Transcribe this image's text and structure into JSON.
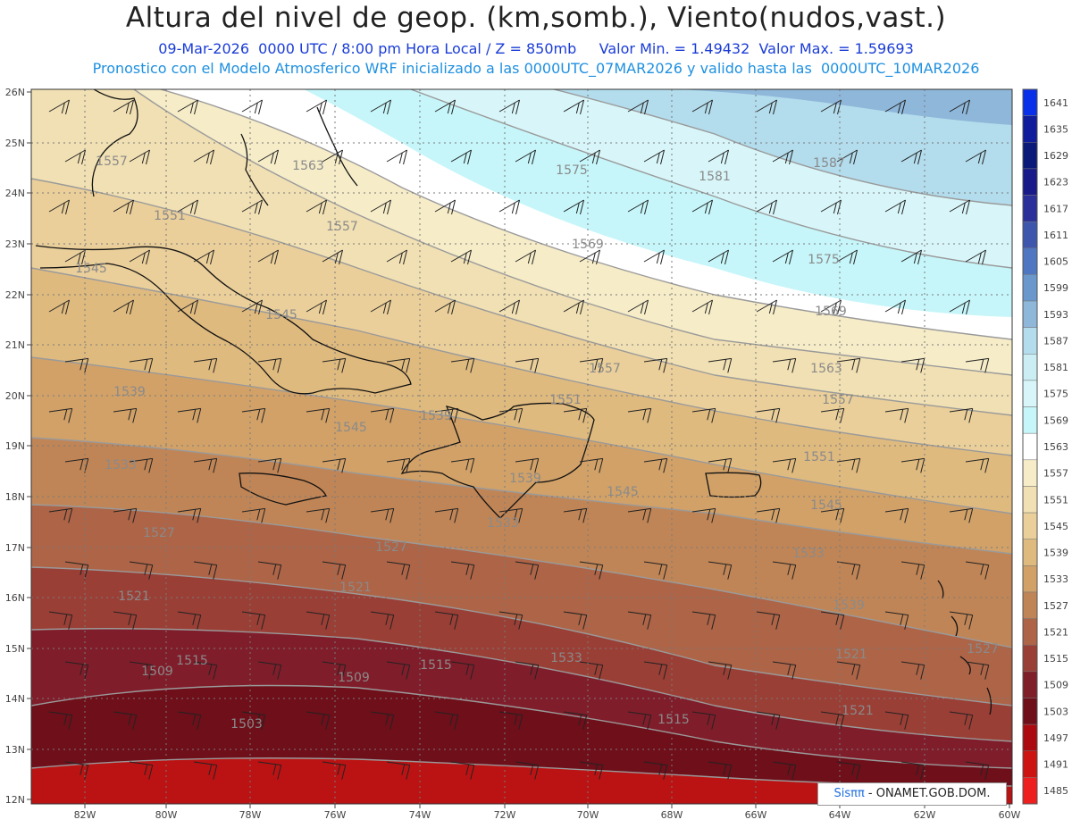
{
  "header": {
    "title": "Altura del nivel de geop. (km,somb.), Viento(nudos,vast.)",
    "subtitle_1": "09-Mar-2026  0000 UTC / 8:00 pm Hora Local / Z = 850mb     Valor Min. = 1.49432  Valor Max. = 1.59693",
    "subtitle_2": "Pronostico con el Modelo Atmosferico WRF inicializado a las 0000UTC_07MAR2026 y valido hasta las  0000UTC_10MAR2026"
  },
  "map": {
    "lat_labels": [
      "26N",
      "25N",
      "24N",
      "23N",
      "22N",
      "21N",
      "20N",
      "19N",
      "18N",
      "17N",
      "16N",
      "15N",
      "14N",
      "13N",
      "12N"
    ],
    "lon_labels": [
      "82W",
      "80W",
      "78W",
      "76W",
      "74W",
      "72W",
      "70W",
      "68W",
      "66W",
      "64W",
      "62W",
      "60W"
    ],
    "contour_labels": [
      "1557",
      "1563",
      "1575",
      "1581",
      "1587",
      "1551",
      "1557",
      "1569",
      "1575",
      "1545",
      "1545",
      "1569",
      "1557",
      "1563",
      "1557",
      "1539",
      "1545",
      "1551",
      "1539",
      "1533",
      "1539",
      "1545",
      "1551",
      "1545",
      "1533",
      "1527",
      "1533",
      "1539",
      "1527",
      "1521",
      "1521",
      "1533",
      "1515",
      "1515",
      "1521",
      "1527",
      "1509",
      "1509",
      "1503",
      "1515",
      "1521"
    ]
  },
  "colorbar": {
    "labels": [
      "1641",
      "1635",
      "1629",
      "1623",
      "1617",
      "1611",
      "1605",
      "1599",
      "1593",
      "1587",
      "1581",
      "1575",
      "1569",
      "1563",
      "1557",
      "1551",
      "1545",
      "1539",
      "1533",
      "1527",
      "1521",
      "1515",
      "1509",
      "1503",
      "1497",
      "1491",
      "1485"
    ],
    "colors": [
      "#0a2fe8",
      "#0f1c9c",
      "#0b1a78",
      "#171a88",
      "#2a2f9a",
      "#3e57ad",
      "#4f76c0",
      "#6a98cd",
      "#8fb7da",
      "#b3dcec",
      "#caeef4",
      "#d8f6f9",
      "#c6f6fa",
      "#ffffff",
      "#f6ecc8",
      "#f1e0b3",
      "#eacf9a",
      "#dfba7f",
      "#d1a168",
      "#c08556",
      "#ad6447",
      "#9a3f36",
      "#7f1f2a",
      "#6f0f1a",
      "#aa0a10",
      "#cc1413",
      "#ee1f1f"
    ]
  },
  "footer": {
    "brand": "Sis",
    "brand_suffix": "ππ",
    "text": "- ONAMET.GOB.DOM."
  }
}
